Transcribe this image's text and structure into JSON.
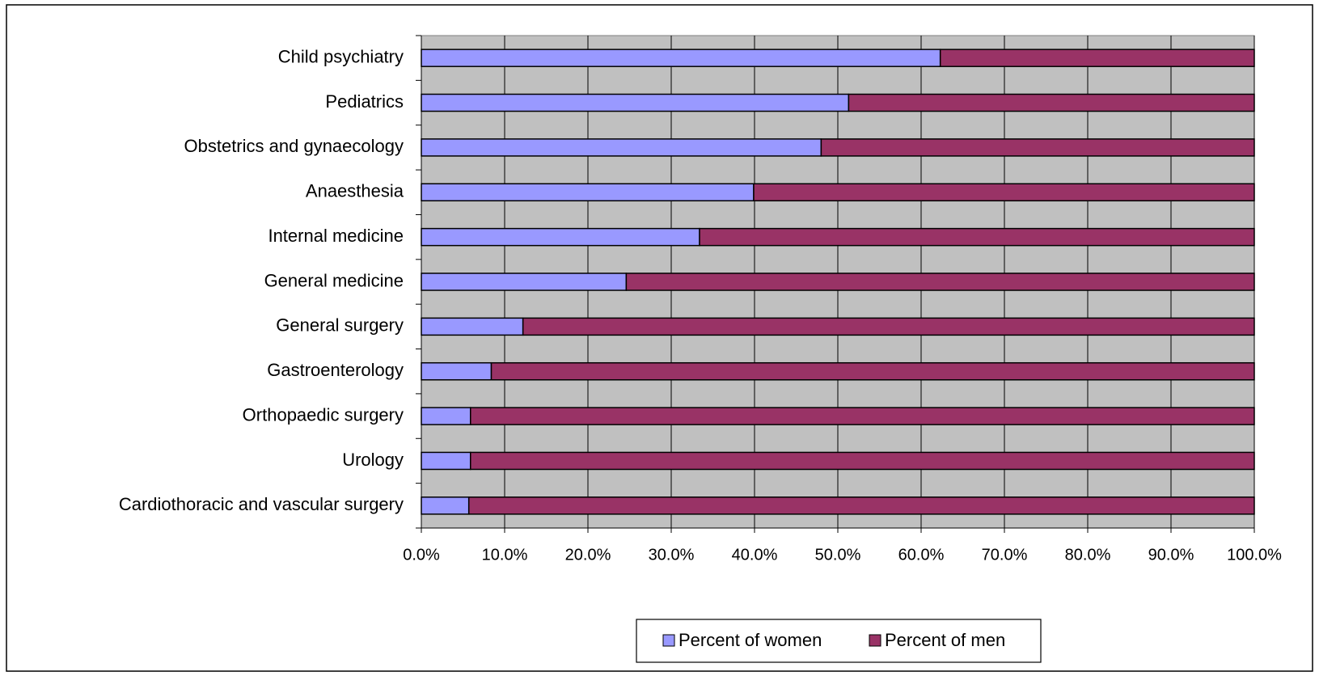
{
  "chart_data": {
    "type": "stacked-bar-horizontal",
    "categories": [
      "Child psychiatry",
      "Pediatrics",
      "Obstetrics and gynaecology",
      "Anaesthesia",
      "Internal medicine",
      "General medicine",
      "General surgery",
      "Gastroenterology",
      "Orthopaedic surgery",
      "Urology",
      "Cardiothoracic and vascular surgery"
    ],
    "series": [
      {
        "name": "Percent of women",
        "color": "#9999ff",
        "values": [
          62.3,
          51.3,
          48.0,
          39.9,
          33.4,
          24.6,
          12.2,
          8.4,
          5.9,
          5.9,
          5.7
        ]
      },
      {
        "name": "Percent of men",
        "color": "#993366",
        "values": [
          37.7,
          48.7,
          52.0,
          60.1,
          66.6,
          75.4,
          87.8,
          91.6,
          94.1,
          94.1,
          94.3
        ]
      }
    ],
    "xlim": [
      0,
      100
    ],
    "xticks": [
      {
        "value": 0,
        "label": "0.0%"
      },
      {
        "value": 10,
        "label": "10.0%"
      },
      {
        "value": 20,
        "label": "20.0%"
      },
      {
        "value": 30,
        "label": "30.0%"
      },
      {
        "value": 40,
        "label": "40.0%"
      },
      {
        "value": 50,
        "label": "50.0%"
      },
      {
        "value": 60,
        "label": "60.0%"
      },
      {
        "value": 70,
        "label": "70.0%"
      },
      {
        "value": 80,
        "label": "80.0%"
      },
      {
        "value": 90,
        "label": "90.0%"
      },
      {
        "value": 100,
        "label": "100.0%"
      }
    ],
    "grid": true,
    "plot_background": "#c0c0c0",
    "legend": "bottom"
  }
}
